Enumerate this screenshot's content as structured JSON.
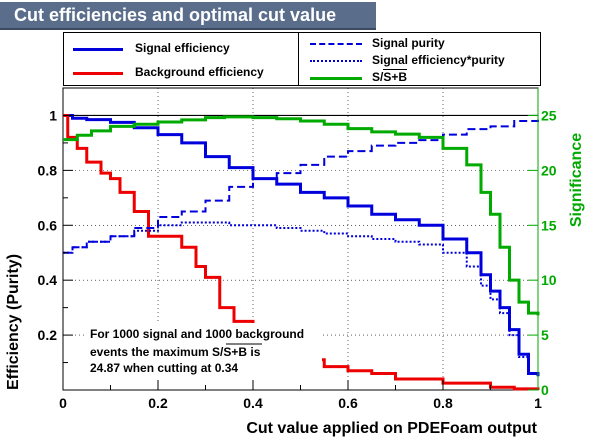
{
  "title": "Cut efficiencies and optimal cut value",
  "annotation": {
    "line1": "For 1000 signal and 1000 background",
    "line2_prefix": "events the maximum S/",
    "line2_sqrt": "S+B",
    "line2_suffix": " is",
    "line3": "24.87 when cutting at  0.34"
  },
  "legend": {
    "signal_eff": "Signal efficiency",
    "background_eff": "Background efficiency",
    "signal_purity": "Signal purity",
    "signal_eff_purity": "Signal efficiency*purity",
    "significance_prefix": "S/",
    "significance_sqrt": "S+B"
  },
  "colors": {
    "signal": "#0000dd",
    "background": "#ee0000",
    "significance": "#00aa00",
    "title_bg": "#5a6e8c"
  },
  "chart_data": {
    "type": "line",
    "xlabel": "Cut value applied on PDEFoam output",
    "ylabel": "Efficiency (Purity)",
    "y2label": "Significance",
    "xlim": [
      0,
      1
    ],
    "ylim": [
      0,
      1.1
    ],
    "y2lim": [
      0,
      27.5
    ],
    "x_ticks": [
      "0",
      "0.2",
      "0.4",
      "0.6",
      "0.8",
      "1"
    ],
    "y_ticks": [
      "0.2",
      "0.4",
      "0.6",
      "0.8",
      "1"
    ],
    "y2_ticks": [
      "0",
      "5",
      "10",
      "15",
      "20",
      "25"
    ],
    "reference_line_y": 1.0,
    "optimal_cut": 0.34,
    "max_significance": 24.87,
    "series": [
      {
        "name": "Signal efficiency",
        "axis": "left",
        "style": "solid",
        "x": [
          0,
          0.02,
          0.05,
          0.1,
          0.15,
          0.2,
          0.25,
          0.3,
          0.35,
          0.4,
          0.45,
          0.5,
          0.55,
          0.6,
          0.65,
          0.7,
          0.75,
          0.8,
          0.85,
          0.88,
          0.9,
          0.92,
          0.94,
          0.96,
          0.98,
          1.0
        ],
        "y": [
          1.0,
          0.99,
          0.985,
          0.975,
          0.955,
          0.93,
          0.9,
          0.85,
          0.81,
          0.77,
          0.75,
          0.72,
          0.7,
          0.67,
          0.64,
          0.62,
          0.6,
          0.55,
          0.5,
          0.42,
          0.36,
          0.3,
          0.22,
          0.13,
          0.06,
          0.05
        ]
      },
      {
        "name": "Background efficiency",
        "axis": "left",
        "style": "solid",
        "x": [
          0,
          0.01,
          0.03,
          0.05,
          0.08,
          0.1,
          0.12,
          0.15,
          0.18,
          0.2,
          0.25,
          0.28,
          0.3,
          0.33,
          0.36,
          0.4,
          0.45,
          0.5,
          0.55,
          0.6,
          0.65,
          0.7,
          0.8,
          0.9,
          0.95,
          1.0
        ],
        "y": [
          1.0,
          0.92,
          0.88,
          0.83,
          0.79,
          0.77,
          0.72,
          0.65,
          0.56,
          0.56,
          0.52,
          0.45,
          0.41,
          0.3,
          0.25,
          0.2,
          0.14,
          0.11,
          0.085,
          0.07,
          0.06,
          0.04,
          0.025,
          0.01,
          0.004,
          0.0
        ]
      },
      {
        "name": "Signal purity",
        "axis": "left",
        "style": "dashed",
        "x": [
          0,
          0.02,
          0.05,
          0.1,
          0.15,
          0.2,
          0.25,
          0.3,
          0.35,
          0.4,
          0.45,
          0.5,
          0.55,
          0.6,
          0.65,
          0.7,
          0.75,
          0.8,
          0.85,
          0.9,
          0.95,
          1.0
        ],
        "y": [
          0.5,
          0.52,
          0.54,
          0.56,
          0.59,
          0.63,
          0.65,
          0.69,
          0.74,
          0.77,
          0.79,
          0.82,
          0.85,
          0.87,
          0.89,
          0.9,
          0.91,
          0.93,
          0.95,
          0.96,
          0.98,
          1.0
        ]
      },
      {
        "name": "Signal efficiency*purity",
        "axis": "left",
        "style": "dotted",
        "x": [
          0,
          0.02,
          0.05,
          0.1,
          0.15,
          0.2,
          0.25,
          0.3,
          0.35,
          0.4,
          0.45,
          0.5,
          0.55,
          0.6,
          0.65,
          0.7,
          0.75,
          0.8,
          0.85,
          0.88,
          0.9,
          0.92,
          0.94,
          0.96,
          0.98,
          1.0
        ],
        "y": [
          0.5,
          0.52,
          0.54,
          0.56,
          0.58,
          0.6,
          0.61,
          0.61,
          0.6,
          0.6,
          0.59,
          0.58,
          0.57,
          0.56,
          0.55,
          0.54,
          0.53,
          0.5,
          0.45,
          0.38,
          0.33,
          0.28,
          0.2,
          0.12,
          0.06,
          0.05
        ]
      },
      {
        "name": "S/√S+B",
        "axis": "right",
        "style": "solid",
        "x": [
          0,
          0.03,
          0.06,
          0.1,
          0.15,
          0.2,
          0.25,
          0.3,
          0.34,
          0.4,
          0.45,
          0.5,
          0.55,
          0.6,
          0.65,
          0.7,
          0.75,
          0.8,
          0.85,
          0.88,
          0.9,
          0.92,
          0.94,
          0.96,
          0.98,
          1.0
        ],
        "y": [
          22.8,
          23.2,
          23.6,
          24.0,
          24.2,
          24.4,
          24.6,
          24.8,
          24.87,
          24.8,
          24.7,
          24.5,
          24.2,
          23.8,
          23.5,
          23.3,
          23.0,
          22.0,
          20.5,
          18.0,
          16.0,
          13.0,
          10.0,
          8.0,
          7.0,
          6.8
        ]
      }
    ]
  }
}
